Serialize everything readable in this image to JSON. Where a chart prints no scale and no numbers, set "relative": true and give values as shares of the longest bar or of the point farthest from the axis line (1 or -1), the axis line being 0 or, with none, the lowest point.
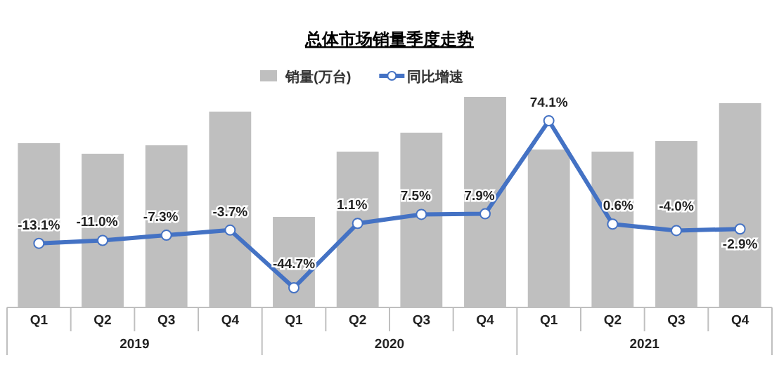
{
  "chart_data": [
    {
      "type": "bar",
      "title": "总体市场销量季度走势",
      "relative": true,
      "legend": "top",
      "categories": [
        "Q1",
        "Q2",
        "Q3",
        "Q4",
        "Q1",
        "Q2",
        "Q3",
        "Q4",
        "Q1",
        "Q2",
        "Q3",
        "Q4"
      ],
      "annotations": [
        "2019",
        "2020",
        "2021"
      ],
      "series": [
        {
          "name": "销量(万台)",
          "color": "#bfbfbf",
          "values": [
            0.78,
            0.73,
            0.77,
            0.93,
            0.43,
            0.74,
            0.83,
            1,
            0.75,
            0.74,
            0.79,
            0.97
          ]
        }
      ]
    },
    {
      "type": "line",
      "legend": "top",
      "categories": [
        null,
        null,
        null,
        null,
        null,
        null,
        null,
        null,
        null,
        null,
        null,
        null
      ],
      "series": [
        {
          "name": "同比增速",
          "color": "#4472c4",
          "marker": "circle",
          "values": [
            -13.1,
            -11.0,
            -7.3,
            -3.7,
            -44.7,
            1.1,
            7.5,
            7.9,
            74.1,
            0.6,
            -4.0,
            -2.9
          ],
          "value_labels": [
            "-13.1%",
            "-11.0%",
            "-7.3%",
            "-3.7%",
            "-44.7%",
            "1.1%",
            "7.5%",
            "7.9%",
            "74.1%",
            "0.6%",
            "-4.0%",
            "-2.9%"
          ]
        }
      ]
    }
  ]
}
